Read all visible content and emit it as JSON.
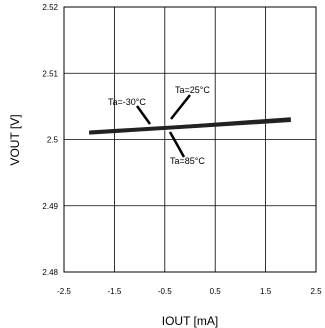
{
  "chart_data": {
    "type": "line",
    "title": "",
    "xlabel": "IOUT [mA]",
    "ylabel": "VOUT [V]",
    "xlim": [
      -2.5,
      2.5
    ],
    "ylim": [
      2.48,
      2.52
    ],
    "x_ticks": [
      "-2.5",
      "-1.5",
      "-0.5",
      "0.5",
      "1.5",
      "2.5"
    ],
    "y_ticks": [
      "2.48",
      "2.49",
      "2.5",
      "2.51",
      "2.52"
    ],
    "grid": true,
    "series": [
      {
        "name": "Ta=-30°C",
        "x": [
          -2,
          2
        ],
        "y": [
          2.5012,
          2.503
        ]
      },
      {
        "name": "Ta=25°C",
        "x": [
          -2,
          2
        ],
        "y": [
          2.501,
          2.5032
        ]
      },
      {
        "name": "Ta=85°C",
        "x": [
          -2,
          2
        ],
        "y": [
          2.5009,
          2.5028
        ]
      }
    ],
    "annotations": [
      {
        "text": "Ta=-30°C"
      },
      {
        "text": "Ta=25°C"
      },
      {
        "text": "Ta=85°C"
      }
    ]
  }
}
